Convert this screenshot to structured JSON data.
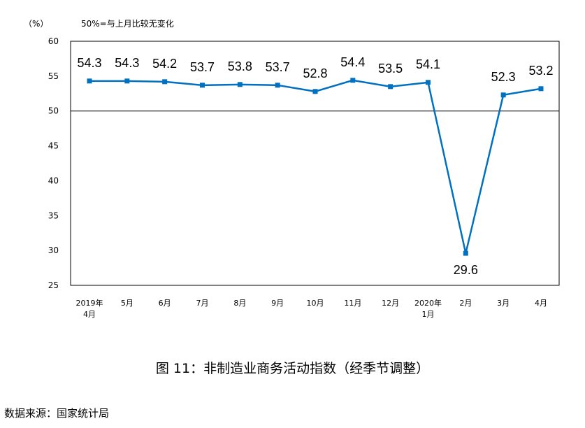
{
  "chart_data": {
    "type": "line",
    "unit_label": "（%）",
    "note": "50%=与上月比较无变化",
    "categories": [
      [
        "2019年",
        "4月"
      ],
      [
        "5月"
      ],
      [
        "6月"
      ],
      [
        "7月"
      ],
      [
        "8月"
      ],
      [
        "9月"
      ],
      [
        "10月"
      ],
      [
        "11月"
      ],
      [
        "12月"
      ],
      [
        "2020年",
        "1月"
      ],
      [
        "2月"
      ],
      [
        "3月"
      ],
      [
        "4月"
      ]
    ],
    "series": [
      {
        "values": [
          54.3,
          54.3,
          54.2,
          53.7,
          53.8,
          53.7,
          52.8,
          54.4,
          53.5,
          54.1,
          29.6,
          52.3,
          53.2
        ],
        "labels": [
          "54.3",
          "54.3",
          "54.2",
          "53.7",
          "53.8",
          "53.7",
          "52.8",
          "54.4",
          "53.5",
          "54.1",
          "29.6",
          "52.3",
          "53.2"
        ],
        "color": "#0070c0"
      }
    ],
    "y_ticks": [
      "60",
      "55",
      "50",
      "45",
      "40",
      "35",
      "30",
      "25"
    ],
    "ylim": [
      25,
      60
    ],
    "baseline": 50,
    "grid": false
  },
  "caption": "图 11：非制造业商务活动指数（经季节调整）",
  "source": "数据来源：国家统计局"
}
